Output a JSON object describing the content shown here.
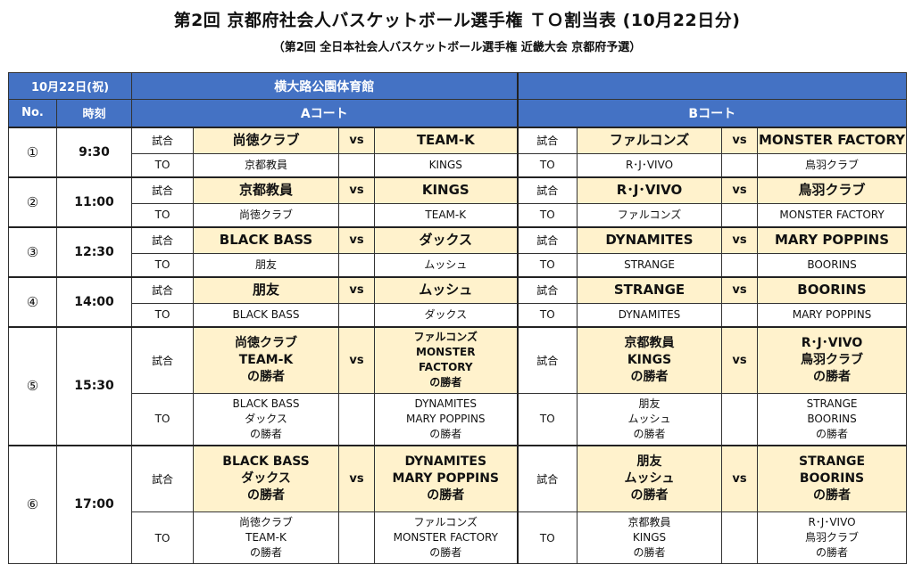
{
  "header": {
    "title": "第2回 京都府社会人バスケットボール選手権 ＴＯ割当表 (10月22日分)",
    "subtitle": "（第2回 全日本社会人バスケットボール選手権 近畿大会 京都府予選）"
  },
  "table": {
    "date": "10月22日(祝)",
    "venue": "横大路公園体育館",
    "col_no": "No.",
    "col_time": "時刻",
    "court_a": "Aコート",
    "court_b": "Bコート",
    "label_game": "試合",
    "label_to": "TO",
    "vs": "vs",
    "rows": [
      {
        "no": "①",
        "time": "9:30",
        "a": {
          "home": "尚徳クラブ",
          "away": "TEAM-K",
          "to_home": "京都教員",
          "to_away": "KINGS"
        },
        "b": {
          "home": "ファルコンズ",
          "away": "MONSTER FACTORY",
          "to_home": "R･J･VIVO",
          "to_away": "鳥羽クラブ"
        }
      },
      {
        "no": "②",
        "time": "11:00",
        "a": {
          "home": "京都教員",
          "away": "KINGS",
          "to_home": "尚徳クラブ",
          "to_away": "TEAM-K"
        },
        "b": {
          "home": "R･J･VIVO",
          "away": "鳥羽クラブ",
          "to_home": "ファルコンズ",
          "to_away": "MONSTER FACTORY"
        }
      },
      {
        "no": "③",
        "time": "12:30",
        "a": {
          "home": "BLACK BASS",
          "away": "ダックス",
          "to_home": "朋友",
          "to_away": "ムッシュ"
        },
        "b": {
          "home": "DYNAMITES",
          "away": "MARY POPPINS",
          "to_home": "STRANGE",
          "to_away": "BOORINS"
        }
      },
      {
        "no": "④",
        "time": "14:00",
        "a": {
          "home": "朋友",
          "away": "ムッシュ",
          "to_home": "BLACK BASS",
          "to_away": "ダックス"
        },
        "b": {
          "home": "STRANGE",
          "away": "BOORINS",
          "to_home": "DYNAMITES",
          "to_away": "MARY POPPINS"
        }
      },
      {
        "no": "⑤",
        "time": "15:30",
        "a": {
          "home": [
            "尚徳クラブ",
            "TEAM-K",
            "の勝者"
          ],
          "away": [
            "ファルコンズ",
            "MONSTER",
            "FACTORY",
            "の勝者"
          ],
          "to_home": [
            "BLACK BASS",
            "ダックス",
            "の勝者"
          ],
          "to_away": [
            "DYNAMITES",
            "MARY POPPINS",
            "の勝者"
          ]
        },
        "b": {
          "home": [
            "京都教員",
            "KINGS",
            "の勝者"
          ],
          "away": [
            "R･J･VIVO",
            "鳥羽クラブ",
            "の勝者"
          ],
          "to_home": [
            "朋友",
            "ムッシュ",
            "の勝者"
          ],
          "to_away": [
            "STRANGE",
            "BOORINS",
            "の勝者"
          ]
        }
      },
      {
        "no": "⑥",
        "time": "17:00",
        "a": {
          "home": [
            "BLACK BASS",
            "ダックス",
            "の勝者"
          ],
          "away": [
            "DYNAMITES",
            "MARY POPPINS",
            "の勝者"
          ],
          "to_home": [
            "尚徳クラブ",
            "TEAM-K",
            "の勝者"
          ],
          "to_away": [
            "ファルコンズ",
            "MONSTER FACTORY",
            "の勝者"
          ]
        },
        "b": {
          "home": [
            "朋友",
            "ムッシュ",
            "の勝者"
          ],
          "away": [
            "STRANGE",
            "BOORINS",
            "の勝者"
          ],
          "to_home": [
            "京都教員",
            "KINGS",
            "の勝者"
          ],
          "to_away": [
            "R･J･VIVO",
            "鳥羽クラブ",
            "の勝者"
          ]
        }
      }
    ]
  },
  "colors": {
    "header_bg": "#4472c4",
    "header_text": "#ffffff",
    "game_bg": "#fff2cc"
  }
}
